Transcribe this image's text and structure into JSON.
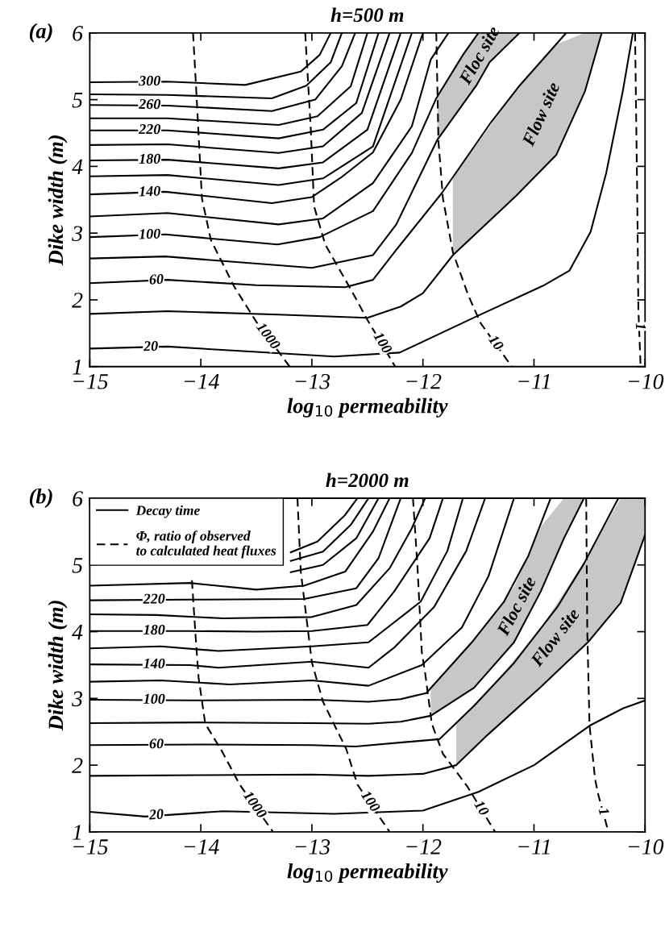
{
  "chart_data": [
    {
      "type": "line",
      "title": "h=500 m",
      "xlabel": "log$_{10}$ permeability",
      "ylabel": "Dike width (m)",
      "xlim": [
        -15,
        -10
      ],
      "ylim": [
        1,
        6
      ],
      "xticks": [
        {
          "value": -15,
          "label": "−15"
        },
        {
          "value": -14,
          "label": "−14"
        },
        {
          "value": -13,
          "label": "−13"
        },
        {
          "value": -12,
          "label": "−12"
        },
        {
          "value": -11,
          "label": "−11"
        },
        {
          "value": -10,
          "label": "−10"
        }
      ],
      "yticks": [
        1,
        2,
        3,
        4,
        5,
        6
      ],
      "series": [
        {
          "color": "#000000",
          "line_style": "solid",
          "x": [
            -15,
            -14.3,
            -13.6,
            -13.1,
            -12.93,
            -12.83
          ],
          "values": [
            5.26,
            5.27,
            5.22,
            5.42,
            5.67,
            6
          ]
        },
        {
          "color": "#000000",
          "line_style": "solid",
          "x": [
            -15,
            -14.3,
            -13.36,
            -13.05,
            -12.83,
            -12.73
          ],
          "values": [
            5.08,
            5.07,
            5.02,
            5.21,
            5.56,
            6
          ]
        },
        {
          "color": "#000000",
          "line_style": "solid",
          "x": [
            -15,
            -14.3,
            -13.36,
            -12.97,
            -12.73,
            -12.61
          ],
          "values": [
            4.92,
            4.91,
            4.83,
            5.0,
            5.5,
            6
          ]
        },
        {
          "color": "#000000",
          "line_style": "solid",
          "x": [
            -15,
            -14.3,
            -13.3,
            -12.95,
            -12.65,
            -12.5
          ],
          "values": [
            4.72,
            4.72,
            4.62,
            4.75,
            5.2,
            6
          ]
        },
        {
          "color": "#000000",
          "line_style": "solid",
          "x": [
            -15,
            -14.3,
            -13.3,
            -12.9,
            -12.6,
            -12.4
          ],
          "values": [
            4.54,
            4.54,
            4.42,
            4.55,
            4.95,
            6
          ]
        },
        {
          "color": "#000000",
          "line_style": "solid",
          "x": [
            -15,
            -14.3,
            -13.3,
            -12.9,
            -12.55,
            -12.3
          ],
          "values": [
            4.32,
            4.33,
            4.2,
            4.3,
            4.8,
            6
          ]
        },
        {
          "color": "#000000",
          "line_style": "solid",
          "x": [
            -15,
            -14.3,
            -13.3,
            -12.9,
            -12.5,
            -12.2
          ],
          "values": [
            4.09,
            4.1,
            3.97,
            4.06,
            4.55,
            6
          ]
        },
        {
          "color": "#000000",
          "line_style": "solid",
          "x": [
            -15,
            -14.3,
            -13.3,
            -12.9,
            -12.45,
            -12.1
          ],
          "values": [
            3.85,
            3.87,
            3.72,
            3.82,
            4.3,
            6
          ]
        },
        {
          "color": "#000000",
          "line_style": "solid",
          "x": [
            -15,
            -14.32,
            -13.36,
            -13.0,
            -12.74,
            -12.45,
            -12.2,
            -12.0
          ],
          "values": [
            3.58,
            3.62,
            3.45,
            3.54,
            3.83,
            4.21,
            5.0,
            6
          ]
        },
        {
          "color": "#000000",
          "line_style": "solid",
          "x": [
            -15,
            -14.3,
            -13.3,
            -12.9,
            -12.45,
            -12.1,
            -11.93,
            -11.77
          ],
          "values": [
            3.25,
            3.3,
            3.13,
            3.22,
            3.75,
            4.6,
            5.6,
            6
          ]
        },
        {
          "color": "#000000",
          "line_style": "solid",
          "x": [
            -15,
            -14.32,
            -13.31,
            -12.93,
            -12.45,
            -12.1,
            -11.88,
            -11.64,
            -11.5
          ],
          "values": [
            2.94,
            2.98,
            2.83,
            2.94,
            3.33,
            4.2,
            5.02,
            5.67,
            6
          ]
        },
        {
          "color": "#000000",
          "line_style": "solid",
          "x": [
            -15,
            -14.32,
            -13.0,
            -12.45,
            -12.24,
            -11.87,
            -11.52,
            -11.4,
            -11.13
          ],
          "values": [
            2.62,
            2.65,
            2.48,
            2.67,
            3.13,
            4.4,
            5.21,
            5.56,
            6
          ],
          "lower": [
            null,
            null,
            null,
            null,
            null,
            4.4,
            5.21,
            5.56,
            6
          ],
          "upper": [
            null,
            null,
            null,
            null,
            null,
            5.02,
            5.98,
            6,
            6
          ]
        },
        {
          "color": "#000000",
          "line_style": "solid",
          "x": [
            -15,
            -14.3,
            -13.5,
            -12.7,
            -12.45,
            -12.24,
            -11.83,
            -11.4,
            -11.13,
            -10.71
          ],
          "values": [
            2.25,
            2.3,
            2.22,
            2.19,
            2.3,
            2.75,
            3.6,
            4.63,
            5.21,
            6
          ]
        },
        {
          "color": "#000000",
          "line_style": "solid",
          "x": [
            -15,
            -14.3,
            -13.3,
            -12.5,
            -12.2,
            -12.0,
            -11.73,
            -11.16,
            -10.8,
            -10.54,
            -10.39
          ],
          "values": [
            1.79,
            1.83,
            1.78,
            1.73,
            1.9,
            2.1,
            2.67,
            3.56,
            4.17,
            5.13,
            6
          ],
          "lower": [
            null,
            null,
            null,
            null,
            null,
            null,
            2.67,
            3.56,
            4.17,
            5.13,
            6
          ],
          "upper": [
            null,
            null,
            null,
            null,
            null,
            null,
            3.84,
            5.14,
            5.83,
            6,
            6
          ]
        },
        {
          "color": "#000000",
          "line_style": "solid",
          "x": [
            -15,
            -14.3,
            -13.5,
            -12.8,
            -12.21,
            -11.52,
            -10.92,
            -10.68,
            -10.49,
            -10.35,
            -10.2,
            -10.11
          ],
          "values": [
            1.27,
            1.3,
            1.22,
            1.15,
            1.21,
            1.75,
            2.21,
            2.44,
            3.02,
            3.9,
            5.13,
            6
          ]
        },
        {
          "color": "#000000",
          "line_style": "dashed",
          "x": [
            -14.07,
            -14.04,
            -13.99,
            -13.91,
            -13.7,
            -13.5,
            -13.2
          ],
          "values": [
            6,
            5.1,
            3.52,
            2.9,
            2.2,
            1.67,
            1.0
          ]
        },
        {
          "color": "#000000",
          "line_style": "dashed",
          "x": [
            -13.06,
            -13.01,
            -12.98,
            -12.88,
            -12.64,
            -12.5,
            -12.25
          ],
          "values": [
            6,
            4.56,
            3.4,
            2.83,
            2.13,
            1.7,
            1.0
          ]
        },
        {
          "color": "#000000",
          "line_style": "dashed",
          "x": [
            -11.88,
            -11.86,
            -11.82,
            -11.73,
            -11.59,
            -11.48,
            -11.2
          ],
          "values": [
            6,
            4.37,
            3.52,
            2.71,
            2.06,
            1.65,
            1.0
          ]
        },
        {
          "color": "#000000",
          "line_style": "dashed",
          "x": [
            -10.09,
            -10.07,
            -10.06,
            -10.04
          ],
          "values": [
            6,
            3.5,
            1.85,
            1.0
          ]
        }
      ],
      "annotations": [
        "(a)",
        {
          "text": "300",
          "x": -14.46,
          "y": 5.265
        },
        {
          "text": "260",
          "x": -14.46,
          "y": 4.915
        },
        {
          "text": "220",
          "x": -14.46,
          "y": 4.54
        },
        {
          "text": "180",
          "x": -14.46,
          "y": 4.095
        },
        {
          "text": "140",
          "x": -14.46,
          "y": 3.61
        },
        {
          "text": "100",
          "x": -14.46,
          "y": 2.97
        },
        {
          "text": "60",
          "x": -14.4,
          "y": 2.29
        },
        {
          "text": "20",
          "x": -14.45,
          "y": 1.29
        },
        {
          "text": "1000",
          "x": -13.4,
          "y": 1.45
        },
        {
          "text": "100",
          "x": -12.37,
          "y": 1.35
        },
        {
          "text": "10",
          "x": -11.35,
          "y": 1.35
        },
        {
          "text": "1",
          "x": -10.05,
          "y": 1.6
        },
        "Floc site",
        "Flow site"
      ]
    },
    {
      "type": "line",
      "title": "h=2000 m",
      "xlabel": "log$_{10}$ permeability",
      "ylabel": "Dike width (m)",
      "xlim": [
        -15,
        -10
      ],
      "ylim": [
        1,
        6
      ],
      "xticks": [
        {
          "value": -15,
          "label": "−15"
        },
        {
          "value": -14,
          "label": "−14"
        },
        {
          "value": -13,
          "label": "−13"
        },
        {
          "value": -12,
          "label": "−12"
        },
        {
          "value": -11,
          "label": "−11"
        },
        {
          "value": -10,
          "label": "−10"
        }
      ],
      "yticks": [
        1,
        2,
        3,
        4,
        5,
        6
      ],
      "legend": "top left",
      "series": [
        {
          "color": "#000000",
          "line_style": "solid",
          "x": [
            -13.19,
            -12.95,
            -12.7,
            -12.59
          ],
          "values": [
            5.19,
            5.35,
            5.75,
            6
          ]
        },
        {
          "color": "#000000",
          "line_style": "solid",
          "x": [
            -13.19,
            -12.9,
            -12.65,
            -12.49
          ],
          "values": [
            5.06,
            5.2,
            5.6,
            6
          ]
        },
        {
          "color": "#000000",
          "line_style": "solid",
          "x": [
            -13.19,
            -12.9,
            -12.6,
            -12.4
          ],
          "values": [
            4.89,
            5.0,
            5.4,
            6
          ]
        },
        {
          "name": "Decay time",
          "color": "#000000",
          "line_style": "solid",
          "x": [
            -15,
            -14.1,
            -13.5,
            -13.07,
            -12.7,
            -12.45,
            -12.3
          ],
          "values": [
            4.69,
            4.73,
            4.63,
            4.69,
            4.9,
            5.5,
            6
          ]
        },
        {
          "color": "#000000",
          "line_style": "solid",
          "x": [
            -15,
            -14.1,
            -13.07,
            -12.6,
            -12.4,
            -12.3,
            -12.2
          ],
          "values": [
            4.47,
            4.48,
            4.49,
            4.65,
            5.1,
            5.55,
            6
          ]
        },
        {
          "color": "#000000",
          "line_style": "solid",
          "x": [
            -15,
            -14.4,
            -13.8,
            -13.0,
            -12.6,
            -12.3,
            -12.1,
            -11.98
          ],
          "values": [
            4.26,
            4.25,
            4.2,
            4.22,
            4.4,
            4.95,
            5.55,
            6
          ]
        },
        {
          "color": "#000000",
          "line_style": "solid",
          "x": [
            -15,
            -14.1,
            -13.5,
            -13.0,
            -12.5,
            -12.26,
            -11.94,
            -11.82
          ],
          "values": [
            4.01,
            4.01,
            4.0,
            4.01,
            4.1,
            4.6,
            5.4,
            6
          ]
        },
        {
          "color": "#000000",
          "line_style": "solid",
          "x": [
            -15,
            -14.36,
            -13.84,
            -13.0,
            -12.49,
            -12.02,
            -11.78,
            -11.64
          ],
          "values": [
            3.75,
            3.78,
            3.71,
            3.78,
            3.84,
            4.45,
            5.21,
            6
          ]
        },
        {
          "color": "#000000",
          "line_style": "solid",
          "x": [
            -15,
            -14.1,
            -13.84,
            -13.0,
            -12.49,
            -12.26,
            -11.9,
            -11.61,
            -11.44
          ],
          "values": [
            3.51,
            3.5,
            3.46,
            3.55,
            3.46,
            3.76,
            4.37,
            5.21,
            6
          ]
        },
        {
          "color": "#000000",
          "line_style": "solid",
          "x": [
            -15,
            -14.36,
            -13.74,
            -13.0,
            -12.49,
            -12.01,
            -11.65,
            -11.41,
            -11.18
          ],
          "values": [
            3.25,
            3.27,
            3.21,
            3.27,
            3.19,
            3.5,
            4.06,
            4.83,
            6
          ]
        },
        {
          "color": "#000000",
          "line_style": "solid",
          "x": [
            -15,
            -14.1,
            -12.97,
            -12.49,
            -12.2,
            -11.97,
            -11.56,
            -11.27,
            -11.05,
            -10.85
          ],
          "values": [
            2.98,
            2.97,
            2.98,
            2.95,
            2.99,
            3.08,
            3.84,
            4.45,
            5.14,
            6
          ]
        },
        {
          "color": "#000000",
          "line_style": "solid",
          "x": [
            -15,
            -14.0,
            -13.0,
            -12.49,
            -12.2,
            -11.93,
            -11.54,
            -11.18,
            -10.94,
            -10.73,
            -10.55
          ],
          "values": [
            2.63,
            2.64,
            2.63,
            2.62,
            2.65,
            2.74,
            3.16,
            3.84,
            4.6,
            5.4,
            6
          ],
          "lower": [
            null,
            null,
            null,
            null,
            null,
            2.74,
            3.16,
            3.84,
            4.6,
            5.4,
            6
          ],
          "upper": [
            null,
            null,
            null,
            null,
            null,
            3.15,
            3.87,
            4.67,
            5.57,
            6,
            6
          ]
        },
        {
          "color": "#000000",
          "line_style": "solid",
          "x": [
            -15,
            -14.0,
            -13.0,
            -12.61,
            -11.85,
            -11.54,
            -11.18,
            -10.79,
            -10.55,
            -10.24
          ],
          "values": [
            2.3,
            2.31,
            2.3,
            2.28,
            2.39,
            2.89,
            3.53,
            4.37,
            5.02,
            6
          ]
        },
        {
          "color": "#000000",
          "line_style": "solid",
          "x": [
            -15,
            -14.0,
            -13.0,
            -12.49,
            -12.0,
            -11.7,
            -11.42,
            -10.94,
            -10.51,
            -10.22,
            -10.0
          ],
          "values": [
            1.84,
            1.85,
            1.86,
            1.84,
            1.87,
            2.0,
            2.45,
            3.17,
            3.85,
            4.43,
            5.45
          ],
          "lower": [
            null,
            null,
            null,
            null,
            null,
            2.0,
            2.45,
            3.17,
            3.85,
            4.43,
            5.45
          ],
          "upper": [
            null,
            null,
            null,
            null,
            null,
            2.63,
            3.1,
            4.05,
            5.15,
            6,
            6
          ]
        },
        {
          "color": "#000000",
          "line_style": "solid",
          "x": [
            -15,
            -14.5,
            -13.8,
            -12.8,
            -12.0,
            -11.5,
            -11.0,
            -10.5,
            -10.2,
            -10.0
          ],
          "values": [
            1.3,
            1.23,
            1.31,
            1.27,
            1.32,
            1.6,
            2.0,
            2.59,
            2.85,
            2.97
          ]
        },
        {
          "name": "Φ, ratio of observed\nto calculated heat fluxes",
          "color": "#000000",
          "line_style": "dashed",
          "x": [
            -14.08,
            -14.05,
            -14.02,
            -13.96,
            -13.81,
            -13.65,
            -13.35
          ],
          "values": [
            4.77,
            4.0,
            3.31,
            2.62,
            2.21,
            1.71,
            1.0
          ]
        },
        {
          "color": "#000000",
          "line_style": "dashed",
          "x": [
            -13.13,
            -13.1,
            -13.0,
            -12.9,
            -12.69,
            -12.59,
            -12.3
          ],
          "values": [
            6,
            4.9,
            3.54,
            2.95,
            2.24,
            1.71,
            1.0
          ]
        },
        {
          "color": "#000000",
          "line_style": "dashed",
          "x": [
            -12.09,
            -12.05,
            -12.01,
            -11.98,
            -11.92,
            -11.82,
            -11.6,
            -11.35
          ],
          "values": [
            6,
            5.0,
            3.69,
            3.38,
            2.62,
            2.17,
            1.68,
            1.0
          ]
        },
        {
          "color": "#000000",
          "line_style": "dashed",
          "x": [
            -10.53,
            -10.52,
            -10.5,
            -10.45,
            -10.42,
            -10.33
          ],
          "values": [
            6,
            4.0,
            2.6,
            1.79,
            1.55,
            1.0
          ]
        }
      ],
      "annotations": [
        "(b)",
        {
          "text": "220",
          "x": -14.42,
          "y": 4.475
        },
        {
          "text": "180",
          "x": -14.42,
          "y": 4.01
        },
        {
          "text": "140",
          "x": -14.42,
          "y": 3.505
        },
        {
          "text": "100",
          "x": -14.42,
          "y": 2.975
        },
        {
          "text": "60",
          "x": -14.4,
          "y": 2.305
        },
        {
          "text": "20",
          "x": -14.4,
          "y": 1.245
        },
        {
          "text": "1000",
          "x": -13.52,
          "y": 1.4
        },
        {
          "text": "100",
          "x": -12.48,
          "y": 1.45
        },
        {
          "text": "10",
          "x": -11.48,
          "y": 1.35
        },
        {
          "text": "1",
          "x": -10.38,
          "y": 1.3
        },
        "Floc site",
        "Flow site"
      ]
    }
  ]
}
